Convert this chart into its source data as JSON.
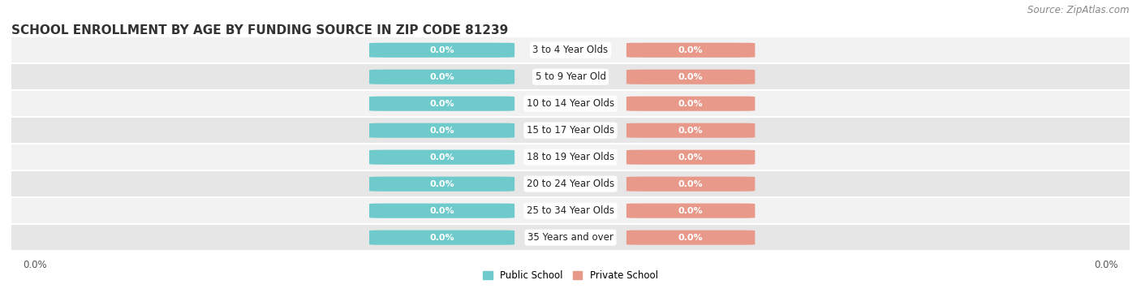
{
  "title": "SCHOOL ENROLLMENT BY AGE BY FUNDING SOURCE IN ZIP CODE 81239",
  "source": "Source: ZipAtlas.com",
  "categories": [
    "3 to 4 Year Olds",
    "5 to 9 Year Old",
    "10 to 14 Year Olds",
    "15 to 17 Year Olds",
    "18 to 19 Year Olds",
    "20 to 24 Year Olds",
    "25 to 34 Year Olds",
    "35 Years and over"
  ],
  "public_values": [
    0.0,
    0.0,
    0.0,
    0.0,
    0.0,
    0.0,
    0.0,
    0.0
  ],
  "private_values": [
    0.0,
    0.0,
    0.0,
    0.0,
    0.0,
    0.0,
    0.0,
    0.0
  ],
  "public_color": "#6ecacb",
  "private_color": "#e8998a",
  "row_bg_light": "#f2f2f2",
  "row_bg_dark": "#e6e6e6",
  "title_fontsize": 11,
  "source_fontsize": 8.5,
  "label_fontsize": 8.5,
  "value_fontsize": 8,
  "left_label": "0.0%",
  "right_label": "0.0%",
  "legend_public": "Public School",
  "legend_private": "Private School",
  "background_color": "#ffffff"
}
